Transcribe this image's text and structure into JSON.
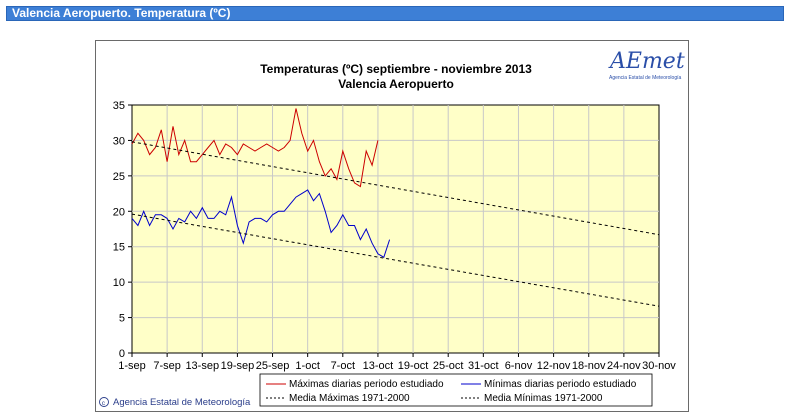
{
  "header": {
    "title": "Valencia Aeropuerto. Temperatura (ºC)"
  },
  "logo": {
    "text": "AEmet",
    "subtitle": "Agencia Estatal de Meteorología"
  },
  "credit": "Agencia Estatal de Meteorología",
  "colors": {
    "header_bg": "#3d7fd6",
    "plot_bg": "#ffffc8",
    "max_series": "#cc0000",
    "min_series": "#0000cc",
    "normal_series": "#000000"
  },
  "chart_data": {
    "type": "line",
    "title": "Temperaturas (ºC) septiembre - noviembre 2013",
    "subtitle": "Valencia Aeropuerto",
    "xlabel": "",
    "ylabel": "",
    "x_ticks": [
      "1-sep",
      "7-sep",
      "13-sep",
      "19-sep",
      "25-sep",
      "1-oct",
      "7-oct",
      "13-oct",
      "19-oct",
      "25-oct",
      "31-oct",
      "6-nov",
      "12-nov",
      "18-nov",
      "24-nov",
      "30-nov"
    ],
    "x_tick_days": [
      1,
      7,
      13,
      19,
      25,
      31,
      37,
      43,
      49,
      55,
      61,
      67,
      73,
      79,
      85,
      91
    ],
    "x_domain_days": [
      1,
      91
    ],
    "y_ticks": [
      0,
      5,
      10,
      15,
      20,
      25,
      30,
      35
    ],
    "ylim": [
      0,
      35
    ],
    "grid": true,
    "legend_position": "bottom",
    "series": [
      {
        "name": "Máximas diarias periodo estudiado",
        "style": "solid",
        "color": "#cc0000",
        "days": [
          1,
          2,
          3,
          4,
          5,
          6,
          7,
          8,
          9,
          10,
          11,
          12,
          13,
          14,
          15,
          16,
          17,
          18,
          19,
          20,
          21,
          22,
          23,
          24,
          25,
          26,
          27,
          28,
          29,
          30,
          31,
          32,
          33,
          34,
          35,
          36,
          37,
          38,
          39,
          40,
          41,
          42,
          43,
          44,
          45
        ],
        "values": [
          29.5,
          31,
          30,
          28,
          29,
          31.5,
          27,
          32,
          28,
          30,
          27,
          27,
          28,
          29,
          30,
          28,
          29.5,
          29,
          28,
          29.5,
          29,
          28.5,
          29,
          29.5,
          29,
          28.5,
          29,
          30,
          34.5,
          31,
          28.5,
          30,
          27,
          25,
          26,
          24.5,
          28.5,
          26,
          24,
          23.5,
          28.5,
          26.5,
          30,
          null,
          null
        ]
      },
      {
        "name": "Mínimas diarias periodo estudiado",
        "style": "solid",
        "color": "#0000cc",
        "days": [
          1,
          2,
          3,
          4,
          5,
          6,
          7,
          8,
          9,
          10,
          11,
          12,
          13,
          14,
          15,
          16,
          17,
          18,
          19,
          20,
          21,
          22,
          23,
          24,
          25,
          26,
          27,
          28,
          29,
          30,
          31,
          32,
          33,
          34,
          35,
          36,
          37,
          38,
          39,
          40,
          41,
          42,
          43,
          44,
          45
        ],
        "values": [
          19,
          18,
          20,
          18,
          19.5,
          19.5,
          19,
          17.5,
          19,
          18.5,
          20,
          19,
          20.5,
          19,
          19,
          20,
          19.5,
          22,
          18,
          15.5,
          18.5,
          19,
          19,
          18.5,
          19.5,
          20,
          20,
          21,
          22,
          22.5,
          23,
          21.5,
          22.5,
          20,
          17,
          18,
          19.5,
          18,
          18,
          16,
          17.5,
          15.5,
          14,
          13.5,
          16
        ]
      },
      {
        "name": "Media Máximas 1971-2000",
        "style": "dashed",
        "color": "#000000",
        "days": [
          1,
          91
        ],
        "values": [
          29.8,
          16.7
        ]
      },
      {
        "name": "Media Mínimas 1971-2000",
        "style": "dashed",
        "color": "#000000",
        "days": [
          1,
          91
        ],
        "values": [
          19.6,
          6.6
        ]
      }
    ]
  }
}
